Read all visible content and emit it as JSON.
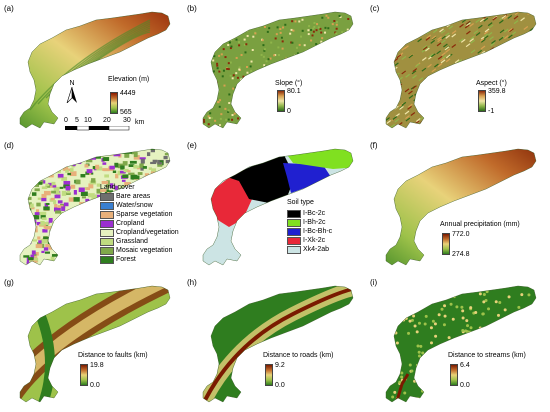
{
  "panels": [
    {
      "label": "(a)",
      "legend_title": "Elevation (m)",
      "max": "4449",
      "min": "565",
      "ramp": [
        "#8b1a00",
        "#c06a2a",
        "#e8d27a",
        "#9ec24a",
        "#2f7d1f"
      ],
      "texture": "smooth"
    },
    {
      "label": "(b)",
      "legend_title": "Slope (°)",
      "max": "80.1",
      "min": "0",
      "ramp": [
        "#8b2a0a",
        "#d8a050",
        "#f0e6a8",
        "#8fb54a",
        "#2c6b18"
      ],
      "texture": "noise"
    },
    {
      "label": "(c)",
      "legend_title": "Aspect (°)",
      "max": "359.8",
      "min": "-1",
      "ramp": [
        "#8b2a0a",
        "#d8a050",
        "#f0e6a8",
        "#8fb54a",
        "#2c6b18"
      ],
      "texture": "ridges"
    },
    {
      "label": "(d)",
      "legend_title": "Land cover",
      "categories": [
        {
          "name": "Bare areas",
          "color": "#6e6e6e"
        },
        {
          "name": "Water/snow",
          "color": "#3a7fd0"
        },
        {
          "name": "Sparse vegetation",
          "color": "#e8b07a"
        },
        {
          "name": "Cropland",
          "color": "#9b2fd0"
        },
        {
          "name": "Cropland/vegetation",
          "color": "#e6f2c0"
        },
        {
          "name": "Grassland",
          "color": "#c0dc80"
        },
        {
          "name": "Mosaic vegetation",
          "color": "#7fa84a"
        },
        {
          "name": "Forest",
          "color": "#2f7d1f"
        }
      ]
    },
    {
      "label": "(e)",
      "legend_title": "Soil type",
      "categories": [
        {
          "name": "I-Bc-2c",
          "color": "#000000"
        },
        {
          "name": "I-Bh-2c",
          "color": "#80e020"
        },
        {
          "name": "I-Bc-Bh-c",
          "color": "#2020d0"
        },
        {
          "name": "I-Xk-2c",
          "color": "#e82838"
        },
        {
          "name": "Xk4-2ab",
          "color": "#cce4e4"
        }
      ]
    },
    {
      "label": "(f)",
      "legend_title": "Annual precipitation (mm)",
      "max": "772.0",
      "min": "274.8",
      "ramp": [
        "#7a1a00",
        "#c06a2a",
        "#e8d27a",
        "#9ec24a",
        "#2f7d1f"
      ],
      "texture": "smooth-rev"
    },
    {
      "label": "(g)",
      "legend_title": "Distance to faults (km)",
      "max": "19.8",
      "min": "0.0",
      "ramp": [
        "#7a1a00",
        "#c06a2a",
        "#e8d27a",
        "#9ec24a",
        "#2f7d1f"
      ],
      "texture": "bands"
    },
    {
      "label": "(h)",
      "legend_title": "Distance to roads (km)",
      "max": "9.2",
      "min": "0.0",
      "ramp": [
        "#7a1a00",
        "#c06a2a",
        "#e8d27a",
        "#9ec24a",
        "#2f7d1f"
      ],
      "texture": "roads"
    },
    {
      "label": "(i)",
      "legend_title": "Distance to streams (km)",
      "max": "6.4",
      "min": "0.0",
      "ramp": [
        "#7a1a00",
        "#c06a2a",
        "#e8d27a",
        "#9ec24a",
        "#2f7d1f"
      ],
      "texture": "streams"
    }
  ],
  "scale": {
    "ticks": [
      "0",
      "5",
      "10",
      "20",
      "30"
    ],
    "unit": "km"
  },
  "north": "N"
}
